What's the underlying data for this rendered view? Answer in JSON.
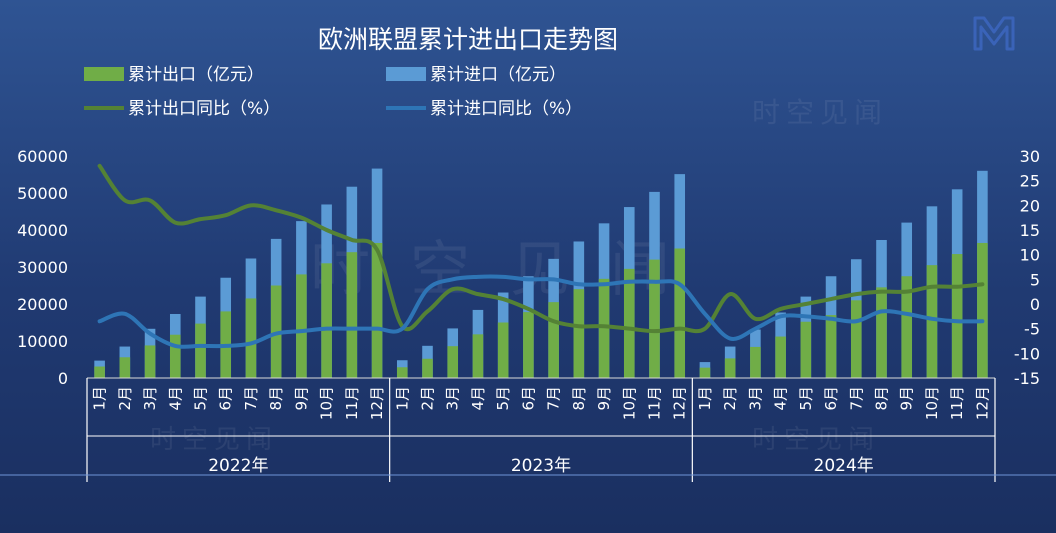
{
  "colors": {
    "export_bar": "#70ad47",
    "import_bar": "#5b9bd5",
    "export_line": "#548235",
    "import_line": "#2e75b6",
    "background": "#2f5493"
  },
  "watermark": "时空见闻",
  "logo_icon": "brand-logo-icon",
  "chart_data": {
    "type": "bar",
    "title": "欧洲联盟累计进出口走势图",
    "categories": [
      "1月",
      "2月",
      "3月",
      "4月",
      "5月",
      "6月",
      "7月",
      "8月",
      "9月",
      "10月",
      "11月",
      "12月",
      "1月",
      "2月",
      "3月",
      "4月",
      "5月",
      "6月",
      "7月",
      "8月",
      "9月",
      "10月",
      "11月",
      "12月",
      "1月",
      "2月",
      "3月",
      "4月",
      "5月",
      "6月",
      "7月",
      "8月",
      "9月",
      "10月",
      "11月",
      "12月"
    ],
    "groups": [
      "2022年",
      "2023年",
      "2024年"
    ],
    "group_size": 12,
    "ylim": [
      0,
      60000
    ],
    "yticks": [
      "0",
      "10000",
      "20000",
      "30000",
      "40000",
      "50000",
      "60000"
    ],
    "y2lim": [
      -15,
      30
    ],
    "y2ticks": [
      "-15",
      "-10",
      "-5",
      "0",
      "5",
      "10",
      "15",
      "20",
      "25",
      "30"
    ],
    "legend_placement": "top",
    "series": [
      {
        "name": "累计出口（亿元）",
        "kind": "bar",
        "values": [
          3100,
          5600,
          8800,
          11700,
          14700,
          18000,
          21500,
          25000,
          28000,
          31000,
          34000,
          36500,
          2900,
          5200,
          8600,
          11800,
          15000,
          17800,
          20500,
          24000,
          26800,
          29500,
          32000,
          35000,
          2800,
          5300,
          8400,
          11200,
          15200,
          17000,
          21000,
          24500,
          27500,
          30500,
          33500,
          36500
        ]
      },
      {
        "name": "累计进口（亿元）",
        "kind": "bar",
        "values": [
          4700,
          8500,
          13300,
          17300,
          22000,
          27100,
          32300,
          37600,
          42400,
          46900,
          51700,
          56600,
          4800,
          8700,
          13400,
          18400,
          23100,
          27500,
          32200,
          36900,
          41800,
          46200,
          50300,
          55100,
          4300,
          8500,
          13100,
          17700,
          22000,
          27500,
          32100,
          37300,
          42000,
          46400,
          51000,
          56000
        ]
      },
      {
        "name": "累计出口同比（%）",
        "kind": "line",
        "axis": "right",
        "values": [
          28,
          21,
          21,
          16.5,
          17.2,
          18,
          20,
          19,
          17.5,
          15,
          13,
          11,
          -4.5,
          -1.5,
          3,
          2,
          1,
          -1,
          -3.5,
          -4.5,
          -4.5,
          -5,
          -5.5,
          -5,
          -5,
          2,
          -3,
          -1,
          0,
          1,
          2,
          2.5,
          2.5,
          3.5,
          3.5,
          4
        ]
      },
      {
        "name": "累计进口同比（%）",
        "kind": "line",
        "axis": "right",
        "values": [
          -3.5,
          -2,
          -6,
          -8.5,
          -8.5,
          -8.5,
          -8,
          -6,
          -5.5,
          -5,
          -5,
          -5,
          -5,
          3,
          5,
          5.5,
          5.5,
          5,
          5,
          4,
          4,
          4.5,
          4.5,
          4,
          -2,
          -7,
          -5,
          -2.5,
          -2.5,
          -3,
          -3.5,
          -1.5,
          -2,
          -3,
          -3.5,
          -3.5
        ]
      }
    ]
  }
}
